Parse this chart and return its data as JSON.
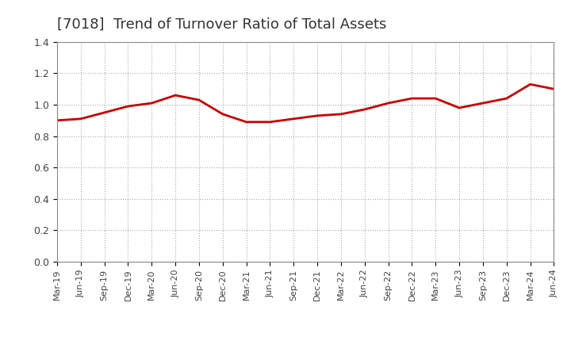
{
  "title": "[7018]  Trend of Turnover Ratio of Total Assets",
  "title_fontsize": 13,
  "line_color": "#cc0000",
  "background_color": "#ffffff",
  "plot_bg_color": "#ffffff",
  "grid_color": "#aaaaaa",
  "ylim": [
    0.0,
    1.4
  ],
  "yticks": [
    0.0,
    0.2,
    0.4,
    0.6,
    0.8,
    1.0,
    1.2,
    1.4
  ],
  "x_labels": [
    "Mar-19",
    "Jun-19",
    "Sep-19",
    "Dec-19",
    "Mar-20",
    "Jun-20",
    "Sep-20",
    "Dec-20",
    "Mar-21",
    "Jun-21",
    "Sep-21",
    "Dec-21",
    "Mar-22",
    "Jun-22",
    "Sep-22",
    "Dec-22",
    "Mar-23",
    "Jun-23",
    "Sep-23",
    "Dec-23",
    "Mar-24",
    "Jun-24"
  ],
  "values": [
    0.9,
    0.91,
    0.95,
    0.99,
    1.01,
    1.06,
    1.03,
    0.94,
    0.89,
    0.89,
    0.91,
    0.93,
    0.94,
    0.97,
    1.01,
    1.04,
    1.04,
    0.98,
    1.01,
    1.04,
    1.13,
    1.1
  ]
}
